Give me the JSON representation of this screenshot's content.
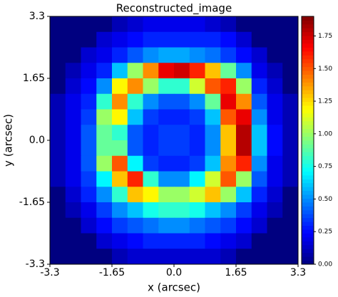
{
  "chart_data": {
    "type": "heatmap",
    "title": "Reconstructed_image",
    "xlabel": "x (arcsec)",
    "ylabel": "y (arcsec)",
    "xlim": [
      -3.3,
      3.3
    ],
    "ylim": [
      -3.3,
      3.3
    ],
    "xticks": [
      -3.3,
      -1.65,
      {
        "value": 0,
        "label": "0.0"
      },
      1.65,
      3.3
    ],
    "yticks": [
      -3.3,
      -1.65,
      {
        "value": 0,
        "label": "0.0"
      },
      1.65,
      3.3
    ],
    "colormap": "jet",
    "zlim": [
      0,
      1.9
    ],
    "zticks": [
      {
        "value": 0,
        "label": "0.00"
      },
      {
        "value": 0.25,
        "label": "0.25"
      },
      {
        "value": 0.5,
        "label": "0.50"
      },
      {
        "value": 0.75,
        "label": "0.75"
      },
      {
        "value": 1,
        "label": "1.00"
      },
      {
        "value": 1.25,
        "label": "1.25"
      },
      {
        "value": 1.5,
        "label": "1.50"
      },
      {
        "value": 1.75,
        "label": "1.75"
      }
    ],
    "z": [
      [
        0,
        0,
        0,
        0,
        0.1,
        0.15,
        0.2,
        0.2,
        0.2,
        0.2,
        0.15,
        0.1,
        0,
        0,
        0,
        0
      ],
      [
        0,
        0,
        0,
        0.15,
        0.2,
        0.25,
        0.3,
        0.3,
        0.3,
        0.3,
        0.3,
        0.25,
        0.15,
        0,
        0,
        0
      ],
      [
        0,
        0,
        0.15,
        0.2,
        0.3,
        0.4,
        0.5,
        0.55,
        0.55,
        0.5,
        0.45,
        0.35,
        0.25,
        0.15,
        0,
        0
      ],
      [
        0,
        0.1,
        0.2,
        0.3,
        0.6,
        1.0,
        1.4,
        1.7,
        1.75,
        1.6,
        1.3,
        0.9,
        0.5,
        0.2,
        0.1,
        0
      ],
      [
        0,
        0.15,
        0.25,
        0.5,
        1.2,
        1.4,
        1.0,
        0.8,
        0.8,
        1.1,
        1.5,
        1.6,
        1.0,
        0.3,
        0.15,
        0
      ],
      [
        0.1,
        0.2,
        0.3,
        0.8,
        1.4,
        0.8,
        0.5,
        0.4,
        0.4,
        0.5,
        0.9,
        1.7,
        1.4,
        0.4,
        0.2,
        0.1
      ],
      [
        0.1,
        0.2,
        0.35,
        1.0,
        1.2,
        0.6,
        0.35,
        0.3,
        0.3,
        0.35,
        0.6,
        1.5,
        1.7,
        0.5,
        0.2,
        0.1
      ],
      [
        0.1,
        0.2,
        0.4,
        0.9,
        0.8,
        0.4,
        0.3,
        0.35,
        0.35,
        0.3,
        0.5,
        1.3,
        1.8,
        0.6,
        0.25,
        0.1
      ],
      [
        0.1,
        0.2,
        0.4,
        0.9,
        0.9,
        0.4,
        0.3,
        0.35,
        0.35,
        0.3,
        0.5,
        1.3,
        1.8,
        0.6,
        0.25,
        0.1
      ],
      [
        0.1,
        0.2,
        0.4,
        1.0,
        1.5,
        0.7,
        0.35,
        0.3,
        0.3,
        0.35,
        0.6,
        1.4,
        1.6,
        0.5,
        0.2,
        0.1
      ],
      [
        0.1,
        0.2,
        0.35,
        0.7,
        1.3,
        1.6,
        0.8,
        0.5,
        0.5,
        0.7,
        1.1,
        1.5,
        1.0,
        0.4,
        0.2,
        0.1
      ],
      [
        0,
        0.15,
        0.3,
        0.5,
        0.8,
        1.3,
        1.2,
        1.0,
        1.0,
        1.1,
        1.3,
        1.0,
        0.6,
        0.3,
        0.15,
        0
      ],
      [
        0,
        0.1,
        0.2,
        0.35,
        0.5,
        0.6,
        0.75,
        0.8,
        0.8,
        0.75,
        0.6,
        0.5,
        0.35,
        0.2,
        0.1,
        0
      ],
      [
        0,
        0,
        0.15,
        0.25,
        0.35,
        0.4,
        0.45,
        0.5,
        0.5,
        0.45,
        0.4,
        0.35,
        0.25,
        0.15,
        0,
        0
      ],
      [
        0,
        0,
        0,
        0.15,
        0.2,
        0.25,
        0.3,
        0.3,
        0.3,
        0.3,
        0.25,
        0.2,
        0.15,
        0,
        0,
        0
      ],
      [
        0,
        0,
        0,
        0,
        0.1,
        0.15,
        0.15,
        0.15,
        0.15,
        0.15,
        0.15,
        0.1,
        0,
        0,
        0,
        0
      ]
    ]
  }
}
